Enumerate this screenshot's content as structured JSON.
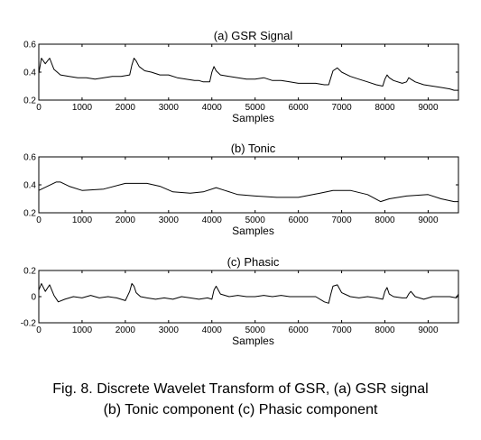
{
  "chart_data": [
    {
      "type": "line",
      "title": "(a) GSR Signal",
      "xlabel": "Samples",
      "ylabel": "",
      "xlim": [
        0,
        9700
      ],
      "ylim": [
        0.2,
        0.6
      ],
      "xticks": [
        0,
        1000,
        2000,
        3000,
        4000,
        5000,
        6000,
        7000,
        8000,
        9000
      ],
      "yticks": [
        0.2,
        0.4,
        0.6
      ],
      "ytick_labels": [
        "0.2",
        "0.4",
        "0.6"
      ],
      "series": [
        {
          "x": [
            0,
            60,
            150,
            250,
            350,
            500,
            700,
            900,
            1100,
            1300,
            1500,
            1700,
            1900,
            2100,
            2150,
            2200,
            2250,
            2320,
            2450,
            2600,
            2800,
            3000,
            3200,
            3400,
            3600,
            3700,
            3800,
            3950,
            4000,
            4050,
            4100,
            4200,
            4400,
            4600,
            4800,
            5000,
            5200,
            5400,
            5600,
            5800,
            6000,
            6200,
            6400,
            6600,
            6700,
            6750,
            6800,
            6900,
            7000,
            7200,
            7400,
            7600,
            7800,
            7950,
            8000,
            8050,
            8100,
            8200,
            8400,
            8500,
            8550,
            8600,
            8700,
            8900,
            9100,
            9300,
            9500,
            9600,
            9700
          ],
          "y": [
            0.39,
            0.5,
            0.46,
            0.5,
            0.42,
            0.38,
            0.37,
            0.36,
            0.36,
            0.35,
            0.36,
            0.37,
            0.37,
            0.38,
            0.45,
            0.5,
            0.48,
            0.44,
            0.41,
            0.4,
            0.38,
            0.38,
            0.36,
            0.35,
            0.34,
            0.34,
            0.33,
            0.33,
            0.4,
            0.44,
            0.41,
            0.38,
            0.37,
            0.36,
            0.35,
            0.35,
            0.36,
            0.34,
            0.34,
            0.33,
            0.32,
            0.32,
            0.32,
            0.31,
            0.31,
            0.36,
            0.41,
            0.43,
            0.4,
            0.37,
            0.35,
            0.33,
            0.31,
            0.3,
            0.35,
            0.38,
            0.36,
            0.34,
            0.32,
            0.33,
            0.36,
            0.35,
            0.33,
            0.31,
            0.3,
            0.29,
            0.28,
            0.27,
            0.27
          ]
        }
      ]
    },
    {
      "type": "line",
      "title": "(b) Tonic",
      "xlabel": "Samples",
      "ylabel": "",
      "xlim": [
        0,
        9700
      ],
      "ylim": [
        0.2,
        0.6
      ],
      "xticks": [
        0,
        1000,
        2000,
        3000,
        4000,
        5000,
        6000,
        7000,
        8000,
        9000
      ],
      "yticks": [
        0.2,
        0.4,
        0.6
      ],
      "ytick_labels": [
        "0.2",
        "0.4",
        "0.6"
      ],
      "series": [
        {
          "x": [
            0,
            200,
            400,
            500,
            700,
            1000,
            1500,
            2000,
            2500,
            2800,
            3100,
            3500,
            3800,
            4100,
            4300,
            4600,
            5000,
            5500,
            6000,
            6500,
            6800,
            7200,
            7600,
            7900,
            8100,
            8500,
            9000,
            9300,
            9600,
            9700
          ],
          "y": [
            0.36,
            0.39,
            0.42,
            0.42,
            0.39,
            0.36,
            0.37,
            0.41,
            0.41,
            0.39,
            0.35,
            0.34,
            0.35,
            0.38,
            0.36,
            0.33,
            0.32,
            0.31,
            0.31,
            0.34,
            0.36,
            0.36,
            0.33,
            0.28,
            0.3,
            0.32,
            0.33,
            0.3,
            0.28,
            0.28
          ]
        }
      ]
    },
    {
      "type": "line",
      "title": "(c) Phasic",
      "xlabel": "Samples",
      "ylabel": "",
      "xlim": [
        0,
        9700
      ],
      "ylim": [
        -0.2,
        0.2
      ],
      "xticks": [
        0,
        1000,
        2000,
        3000,
        4000,
        5000,
        6000,
        7000,
        8000,
        9000
      ],
      "yticks": [
        -0.2,
        0,
        0.2
      ],
      "ytick_labels": [
        "-0.2",
        "0",
        "0.2"
      ],
      "series": [
        {
          "x": [
            0,
            60,
            150,
            250,
            350,
            450,
            600,
            800,
            1000,
            1200,
            1400,
            1600,
            1800,
            2000,
            2100,
            2150,
            2200,
            2250,
            2350,
            2500,
            2700,
            2900,
            3100,
            3300,
            3500,
            3700,
            3900,
            4000,
            4050,
            4100,
            4200,
            4400,
            4600,
            4800,
            5000,
            5200,
            5400,
            5600,
            5800,
            6000,
            6200,
            6400,
            6600,
            6700,
            6750,
            6800,
            6900,
            7000,
            7200,
            7400,
            7600,
            7800,
            7950,
            8000,
            8050,
            8100,
            8200,
            8400,
            8500,
            8550,
            8600,
            8700,
            8900,
            9100,
            9300,
            9500,
            9650,
            9700
          ],
          "y": [
            0.05,
            0.1,
            0.04,
            0.09,
            0.01,
            -0.04,
            -0.02,
            0.0,
            -0.01,
            0.01,
            -0.01,
            0.0,
            -0.01,
            -0.03,
            0.04,
            0.1,
            0.08,
            0.03,
            0.0,
            -0.01,
            -0.02,
            -0.01,
            -0.02,
            0.0,
            -0.01,
            -0.02,
            -0.01,
            -0.02,
            0.05,
            0.08,
            0.02,
            0.0,
            0.01,
            0.0,
            0.0,
            0.01,
            0.0,
            0.01,
            0.0,
            0.0,
            0.0,
            0.0,
            -0.04,
            -0.05,
            0.02,
            0.08,
            0.09,
            0.03,
            0.0,
            -0.01,
            0.0,
            -0.01,
            -0.02,
            0.04,
            0.07,
            0.02,
            0.0,
            -0.01,
            -0.01,
            0.02,
            0.04,
            0.0,
            -0.02,
            0.0,
            0.0,
            0.0,
            -0.01,
            0.02
          ]
        }
      ]
    }
  ],
  "caption": {
    "line1": "Fig. 8. Discrete Wavelet Transform of GSR, (a) GSR signal",
    "line2": "(b) Tonic component (c) Phasic component"
  }
}
